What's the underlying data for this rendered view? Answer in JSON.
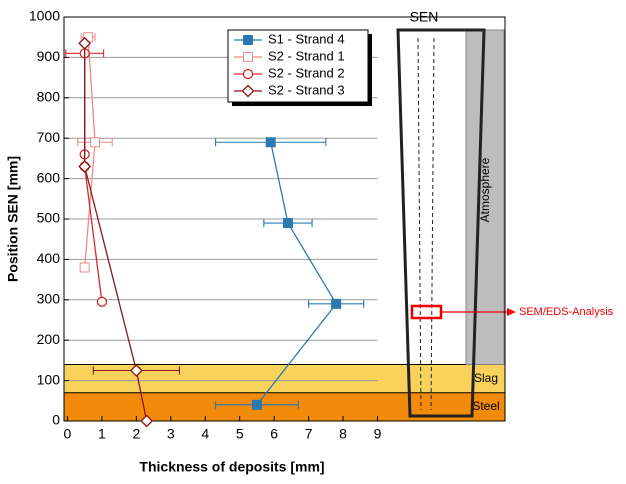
{
  "chart_data": {
    "type": "line",
    "x_label": "Thickness of deposits [mm]",
    "y_label": "Position SEN [mm]",
    "xlim": [
      -0.1,
      12.7
    ],
    "ylim": [
      0,
      1000
    ],
    "xticks": [
      0,
      1,
      2,
      3,
      4,
      5,
      6,
      7,
      8,
      9
    ],
    "yticks": [
      0,
      100,
      200,
      300,
      400,
      500,
      600,
      700,
      800,
      900,
      1000
    ],
    "grid": true,
    "legend": "upper center",
    "regions": [
      {
        "label": "Slag",
        "range": [
          70,
          140
        ],
        "color": "#f9d25b"
      },
      {
        "label": "Steel",
        "range": [
          0,
          70
        ],
        "color": "#f28a0a"
      }
    ],
    "annotations": {
      "sen": "SEN",
      "atmosphere": "Atmosphere",
      "analysis": "SEM/EDS-Analysis"
    },
    "series": [
      {
        "name": "S1 - Strand 4",
        "color": "#2b79b0",
        "marker": "square-filled",
        "x": [
          5.9,
          6.4,
          7.8,
          5.5
        ],
        "values": [
          690,
          490,
          290,
          40
        ],
        "xerr": [
          1.6,
          0.7,
          0.8,
          1.2
        ]
      },
      {
        "name": "S2 - Strand 1",
        "color": "#f08a8a",
        "marker": "square-open",
        "x": [
          0.6,
          0.8,
          0.5
        ],
        "values": [
          950,
          690,
          380
        ],
        "xerr": [
          0.2,
          0.5,
          null
        ]
      },
      {
        "name": "S2 - Strand 2",
        "color": "#d42a2a",
        "marker": "circle-open",
        "x": [
          0.5,
          0.5,
          0.5,
          1.0
        ],
        "values": [
          910,
          660,
          630,
          295
        ],
        "xerr": [
          0.55,
          null,
          null,
          null
        ]
      },
      {
        "name": "S2 - Strand 3",
        "color": "#8b1515",
        "marker": "diamond-open",
        "x": [
          0.5,
          0.5,
          2.0,
          2.3
        ],
        "values": [
          935,
          630,
          125,
          0
        ],
        "xerr": [
          null,
          null,
          1.25,
          null
        ]
      }
    ]
  }
}
